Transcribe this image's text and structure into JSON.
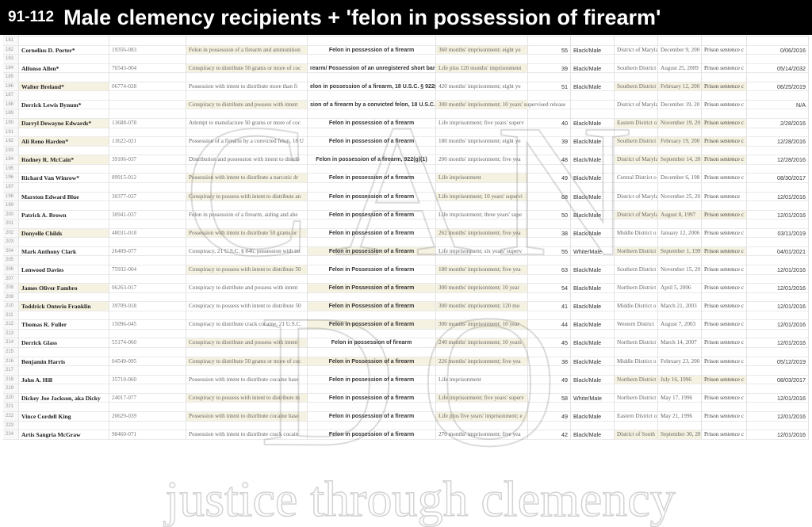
{
  "title": {
    "range": "91-112",
    "text": "Male clemency recipients + 'felon in possession of firearm'"
  },
  "watermark": {
    "logo": "CAN DO",
    "tagline": "justice through clemency"
  },
  "first_row": 181,
  "last_row": 224,
  "rows": [
    {
      "n": 182,
      "name": "Cornelius D. Porter*",
      "reg": "19356-083",
      "offense": "Felon in possession of a firearm and ammunition",
      "firearm": "Felon in possession of a firearm",
      "sentence": "360 months' imprisonment; eight ye",
      "age": "55",
      "race": "Black/Male",
      "district": "District of Maryland",
      "date": "December 9, 200",
      "type": "Prison sentence c",
      "release": "0/06/2016",
      "hl": [
        "of",
        "se"
      ]
    },
    {
      "n": 184,
      "name": "Alfonso Allen*",
      "reg": "76543-004",
      "offense": "Conspiracy to distribute 50 grams or more of coc",
      "firearm": "rearm/ Possession of an unregistered short barr",
      "sentence": "Life plus 120 months' imprisonment",
      "age": "39",
      "race": "Black/Male",
      "district": "Southern District",
      "date": "August 25, 2009",
      "type": "Prison sentence c",
      "release": "05/14/2032",
      "hl": [
        "of",
        "se"
      ]
    },
    {
      "n": 186,
      "name": "Walter Breland*",
      "reg": "06774-028",
      "offense": "Possession with intent to distribute more than fi",
      "firearm": "elon in possession of a firearm, 18 U.S.C. § 922(",
      "sentence": "420 months' imprisonment; eight ye",
      "age": "51",
      "race": "Black/Male",
      "district": "Southern District",
      "date": "February 12, 200",
      "type": "Prison sentence c",
      "release": "06/25/2019",
      "hl": [
        "nm",
        "di",
        "dt",
        "st"
      ]
    },
    {
      "n": 188,
      "name": "Derrick Lewis Bynum*",
      "reg": "",
      "offense": "Conspiracy to distribute and possess with intent",
      "firearm": "sion of a firearm by a convicted felon, 18 U.S.C.",
      "sentence": "300 months' imprisonment; 10 years' supervised release",
      "age": "",
      "race": "",
      "district": "District of Maryland",
      "date": "December 19, 20",
      "type": "Prison sentence c",
      "release": "N/A",
      "hl": [
        "of",
        "se"
      ],
      "spill": true
    },
    {
      "n": 190,
      "name": "Darryl Dewayne Edwards*",
      "reg": "13688-078",
      "offense": "Attempt to manufacture 50 grams or more of coc",
      "firearm": "Felon in possession of a firearm",
      "sentence": "Life imprisonment; five years' superv",
      "age": "40",
      "race": "Black/Male",
      "district": "Eastern District of",
      "date": "November 19, 20",
      "type": "Prison sentence c",
      "release": "2/28/2016",
      "hl": [
        "nm",
        "di",
        "dt",
        "st"
      ]
    },
    {
      "n": 192,
      "name": "Ali Reno Harden*",
      "reg": "13622-021",
      "offense": "Possession of a firearm by a convicted felon, 18 U",
      "firearm": "Felon in possession of a firearm",
      "sentence": "180 months' imprisonment; eight ye",
      "age": "39",
      "race": "Black/Male",
      "district": "Southern District",
      "date": "February 19, 200",
      "type": "Prison sentence c",
      "release": "12/28/2016",
      "hl": [
        "nm",
        "di",
        "dt",
        "st"
      ]
    },
    {
      "n": 194,
      "name": "Rodney R. McCain*",
      "reg": "39106-037",
      "offense": "Distribution and possession with intent to distrib",
      "firearm": "Felon in possession of a firearm, 922(g)(1)",
      "sentence": "200 months' imprisonment; five yea",
      "age": "48",
      "race": "Black/Male",
      "district": "District of Maryland",
      "date": "September 14, 20",
      "type": "Prison sentence c",
      "release": "12/28/2016",
      "hl": [
        "nm",
        "di",
        "dt",
        "st"
      ]
    },
    {
      "n": 196,
      "name": "Richard Van Winrow*",
      "reg": "89915-012",
      "offense": "Possession with intent to distribute a narcotic dr",
      "firearm": "Felon in possession of a firearm",
      "sentence": "Life imprisonment",
      "age": "49",
      "race": "Black/Male",
      "district": "Central District o",
      "date": "December 6, 198",
      "type": "Prison sentence c",
      "release": "08/30/2017",
      "hl": [
        "of",
        "se"
      ]
    },
    {
      "n": 198,
      "name": "Marston Edward Blue",
      "reg": "30377-037",
      "offense": "Conspiracy to possess with intent to distribute an",
      "firearm": "Felon in possession of a firearm",
      "sentence": "Life imprisonment; 10 years' supervi",
      "age": "68",
      "race": "Black/Male",
      "district": "District of Maryland",
      "date": "November 25, 20",
      "type": "Prison sentence",
      "release": "12/01/2016",
      "hl": [
        "of",
        "se"
      ]
    },
    {
      "n": 200,
      "name": "Patrick A. Brown",
      "reg": "30941-037",
      "offense": "Felon in possession of a firearm, aiding and abe",
      "firearm": "Felon in possession of a firearm",
      "sentence": "Life imprisonment; three years' supe",
      "age": "50",
      "race": "Black/Male",
      "district": "District of Maryland",
      "date": "August 8, 1997",
      "type": "Prison sentence c",
      "release": "12/01/2016",
      "hl": [
        "di",
        "dt",
        "st"
      ]
    },
    {
      "n": 202,
      "name": "Donyelle Childs",
      "reg": "48031-018",
      "offense": "Possession with intent to distribute 50 grams or",
      "firearm": "Felon in possession of a firearm",
      "sentence": "262 months' imprisonment; five yea",
      "age": "38",
      "race": "Black/Male",
      "district": "Middle District o",
      "date": "January 12, 2006",
      "type": "Prison sentence c",
      "release": "03/11/2019",
      "hl": [
        "nm",
        "of",
        "se"
      ]
    },
    {
      "n": 204,
      "name": "Mark Anthony Clark",
      "reg": "26409-077",
      "offense": "Conspiracy, 21 U.S.C. § 846; possession with int",
      "firearm": "Felon in possession of a firearm",
      "sentence": "Life imprisonment; six years' superv",
      "age": "55",
      "race": "White/Male",
      "district": "Northern District",
      "date": "September 1, 199",
      "type": "Prison sentence c",
      "release": "04/01/2021",
      "hl": [
        "fa",
        "di",
        "dt",
        "st"
      ]
    },
    {
      "n": 206,
      "name": "Lenwood Davies",
      "reg": "75932-004",
      "offense": "Conspiracy to possess with intent to distribute 50",
      "firearm": "Felon in Possession of a firearm",
      "sentence": "180 months' imprisonment; five yea",
      "age": "63",
      "race": "Black/Male",
      "district": "Southern District",
      "date": "November 15, 20",
      "type": "Prison sentence c",
      "release": "12/01/2016",
      "hl": [
        "of",
        "se"
      ]
    },
    {
      "n": 208,
      "name": "James Oliver Fambro",
      "reg": "06263-017",
      "offense": "Conspiracy to distribute and possess with intent",
      "firearm": "Felon in Possession of a firearm",
      "sentence": "300 months' imprisonment; 10 year",
      "age": "54",
      "race": "Black/Male",
      "district": "Northern District",
      "date": "April 5, 2006",
      "type": "Prison sentence c",
      "release": "12/01/2016",
      "hl": [
        "nm",
        "fa",
        "se"
      ]
    },
    {
      "n": 210,
      "name": "Toddrick Onterio Franklin",
      "reg": "39709-018",
      "offense": "Conspiracy to possess with intent to distribute 50",
      "firearm": "Felon in Possession of a firearm",
      "sentence": "300 months' imprisonment; 120 mo",
      "age": "41",
      "race": "Black/Male",
      "district": "Middle District o",
      "date": "March 21, 2003",
      "type": "Prison sentence c",
      "release": "12/01/2016",
      "hl": [
        "nm",
        "fa",
        "se"
      ]
    },
    {
      "n": 212,
      "name": "Thomas R. Fuller",
      "reg": "15096-045",
      "offense": "Conspiracy to distribute crack cocaine, 21 U.S.C.",
      "firearm": "Felon in possession of a firearm",
      "sentence": "300 months' imprisonment; 10 year",
      "age": "44",
      "race": "Black/Male",
      "district": "Western District",
      "date": "August 7, 2003",
      "type": "Prison sentence c",
      "release": "12/01/2016",
      "hl": [
        "fa",
        "se"
      ]
    },
    {
      "n": 214,
      "name": "Derrick Glass",
      "reg": "55174-060",
      "offense": "Conspiracy to distribute and possess with intent",
      "firearm": "Felon in possession of firearm",
      "sentence": "240 months' imprisonment; 10 years",
      "age": "45",
      "race": "Black/Male",
      "district": "Northern District",
      "date": "March 14, 2007",
      "type": "Prison sentence c",
      "release": "12/01/2016",
      "hl": [
        "of",
        "se"
      ]
    },
    {
      "n": 216,
      "name": "Benjamin Harris",
      "reg": "04549-095",
      "offense": "Conspiracy to distribute 50 grams or more of coc",
      "firearm": "Felon in Possession of a firearm",
      "sentence": "226 months' imprisonment; five yea",
      "age": "38",
      "race": "Black/Male",
      "district": "Middle District o",
      "date": "February 23, 200",
      "type": "Prison sentence c",
      "release": "05/12/2019",
      "hl": [
        "of",
        "fa",
        "se"
      ]
    },
    {
      "n": 218,
      "name": "John A. Hill",
      "reg": "35710-060",
      "offense": "Possession with intent to distribute cocaine base",
      "firearm": "Felon in possession of a firearm",
      "sentence": "Life imprisonment",
      "age": "49",
      "race": "Black/Male",
      "district": "Northern District",
      "date": "July 16, 1996",
      "type": "Prison sentence c",
      "release": "08/03/2017",
      "hl": [
        "di",
        "dt",
        "st"
      ]
    },
    {
      "n": 220,
      "name": "Dickey Joe Jackson, aka Dicky",
      "reg": "24017-077",
      "offense": "Conspiracy to possess with intent to distribute m",
      "firearm": "Felon in possession of a firearm",
      "sentence": "Life imprisonment; five years' superv",
      "age": "58",
      "race": "White/Male",
      "district": "Northern District",
      "date": "May 17, 1996",
      "type": "Prison sentence c",
      "release": "12/01/2016",
      "hl": [
        "of",
        "se"
      ]
    },
    {
      "n": 222,
      "name": "Vince Cordell King",
      "reg": "20629-039",
      "offense": "Possession with intent to distribute cocaine base",
      "firearm": "Felon in possession of a firearm",
      "sentence": "Life plus five years' imprisonment; e",
      "age": "49",
      "race": "Black/Male",
      "district": "Eastern District of",
      "date": "May 21, 1996",
      "type": "Prison sentence c",
      "release": "12/01/2016",
      "hl": [
        "of",
        "se"
      ]
    },
    {
      "n": 224,
      "name": "Artis Sangria McGraw",
      "reg": "98460-071",
      "offense": "Possession with intent to distribute crack cocain",
      "firearm": "Felon in possession of a firearm",
      "sentence": "270 months' imprisonment; five yea",
      "age": "42",
      "race": "Black/Male",
      "district": "District of South",
      "date": "September 30, 20",
      "type": "Prison sentence c",
      "release": "12/01/2016",
      "hl": [
        "di",
        "dt"
      ]
    }
  ]
}
